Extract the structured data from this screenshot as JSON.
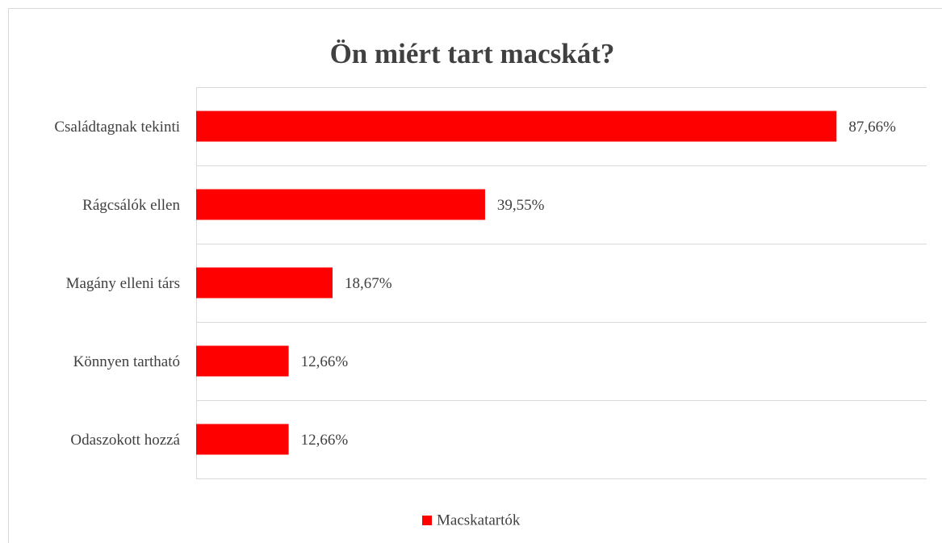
{
  "chart_data": {
    "type": "barh",
    "title": "Ön miért tart macskát?",
    "categories": [
      "Családtagnak tekinti",
      "Rágcsálók ellen",
      "Magány elleni társ",
      "Könnyen tartható",
      "Odaszokott hozzá"
    ],
    "series": [
      {
        "name": "Macskatartók",
        "color": "#ff0000",
        "values": [
          87.66,
          39.55,
          18.67,
          12.66,
          12.66
        ],
        "value_labels": [
          "87,66%",
          "39,55%",
          "18,67%",
          "12,66%",
          "12,66%"
        ]
      }
    ],
    "xlim": [
      0,
      100
    ],
    "legend": "bottom",
    "grid": true
  }
}
